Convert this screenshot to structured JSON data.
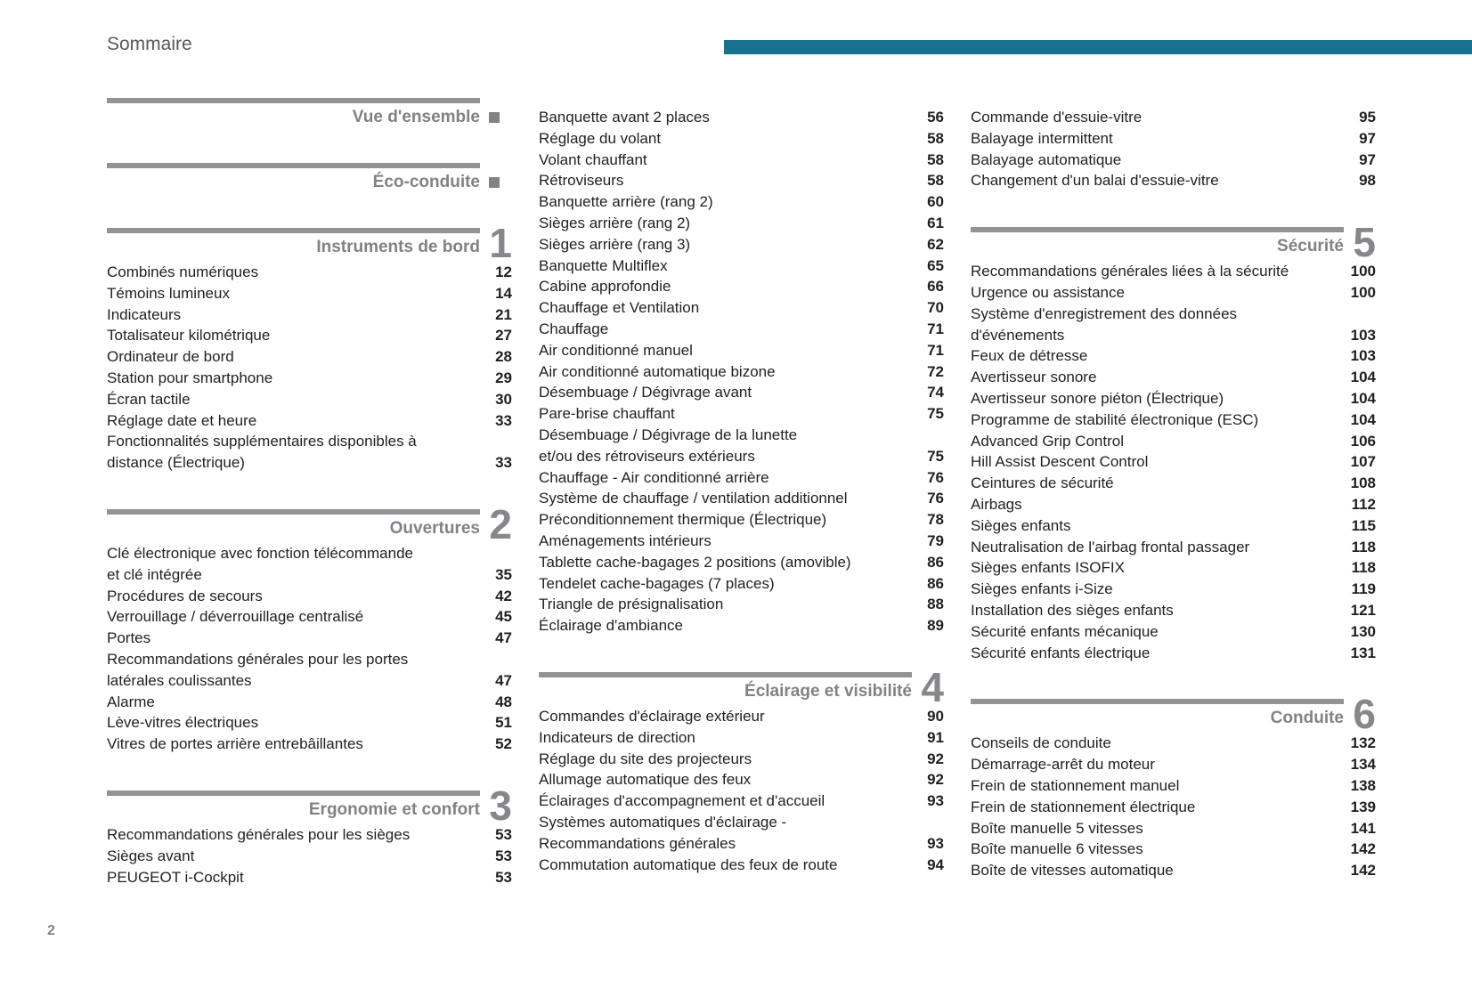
{
  "page": {
    "title": "Sommaire",
    "page_number": "2",
    "colors": {
      "accent_teal": "#17718F",
      "rule_gray": "#919396",
      "heading_gray": "#808285",
      "text_dark": "#231F20"
    }
  },
  "toc": {
    "columns": [
      {
        "sections": [
          {
            "title": "Vue d'ensemble",
            "marker": "square",
            "entries": []
          },
          {
            "title": "Éco-conduite",
            "marker": "square",
            "entries": []
          },
          {
            "title": "Instruments de bord",
            "number": "1",
            "entries": [
              {
                "lines": [
                  "Combinés numériques"
                ],
                "page": "12"
              },
              {
                "lines": [
                  "Témoins lumineux"
                ],
                "page": "14"
              },
              {
                "lines": [
                  "Indicateurs"
                ],
                "page": "21"
              },
              {
                "lines": [
                  "Totalisateur kilométrique"
                ],
                "page": "27"
              },
              {
                "lines": [
                  "Ordinateur de bord"
                ],
                "page": "28"
              },
              {
                "lines": [
                  "Station pour smartphone"
                ],
                "page": "29"
              },
              {
                "lines": [
                  "Écran tactile"
                ],
                "page": "30"
              },
              {
                "lines": [
                  "Réglage date et heure"
                ],
                "page": "33"
              },
              {
                "lines": [
                  "Fonctionnalités supplémentaires disponibles à",
                  "distance (Électrique)"
                ],
                "page": "33"
              }
            ]
          },
          {
            "title": "Ouvertures",
            "number": "2",
            "entries": [
              {
                "lines": [
                  "Clé électronique avec fonction télécommande",
                  "et clé intégrée"
                ],
                "page": "35"
              },
              {
                "lines": [
                  "Procédures de secours"
                ],
                "page": "42"
              },
              {
                "lines": [
                  "Verrouillage / déverrouillage centralisé"
                ],
                "page": "45"
              },
              {
                "lines": [
                  "Portes"
                ],
                "page": "47"
              },
              {
                "lines": [
                  "Recommandations générales pour les portes",
                  "latérales coulissantes"
                ],
                "page": "47"
              },
              {
                "lines": [
                  "Alarme"
                ],
                "page": "48"
              },
              {
                "lines": [
                  "Lève-vitres électriques"
                ],
                "page": "51"
              },
              {
                "lines": [
                  "Vitres de portes arrière entrebâillantes"
                ],
                "page": "52"
              }
            ]
          },
          {
            "title": "Ergonomie et confort",
            "number": "3",
            "entries": [
              {
                "lines": [
                  "Recommandations générales pour les sièges"
                ],
                "page": "53"
              },
              {
                "lines": [
                  "Sièges avant"
                ],
                "page": "53"
              },
              {
                "lines": [
                  "PEUGEOT i-Cockpit"
                ],
                "page": "53"
              }
            ]
          }
        ]
      },
      {
        "sections": [
          {
            "entries": [
              {
                "lines": [
                  "Banquette avant 2 places"
                ],
                "page": "56"
              },
              {
                "lines": [
                  "Réglage du volant"
                ],
                "page": "58"
              },
              {
                "lines": [
                  "Volant chauffant"
                ],
                "page": "58"
              },
              {
                "lines": [
                  "Rétroviseurs"
                ],
                "page": "58"
              },
              {
                "lines": [
                  "Banquette arrière (rang 2)"
                ],
                "page": "60"
              },
              {
                "lines": [
                  "Sièges arrière (rang 2)"
                ],
                "page": "61"
              },
              {
                "lines": [
                  "Sièges arrière (rang 3)"
                ],
                "page": "62"
              },
              {
                "lines": [
                  "Banquette Multiflex"
                ],
                "page": "65"
              },
              {
                "lines": [
                  "Cabine approfondie"
                ],
                "page": "66"
              },
              {
                "lines": [
                  "Chauffage et Ventilation"
                ],
                "page": "70"
              },
              {
                "lines": [
                  "Chauffage"
                ],
                "page": "71"
              },
              {
                "lines": [
                  "Air conditionné manuel"
                ],
                "page": "71"
              },
              {
                "lines": [
                  "Air conditionné automatique bizone"
                ],
                "page": "72"
              },
              {
                "lines": [
                  "Désembuage / Dégivrage avant"
                ],
                "page": "74"
              },
              {
                "lines": [
                  "Pare-brise chauffant"
                ],
                "page": "75"
              },
              {
                "lines": [
                  "Désembuage / Dégivrage de la lunette",
                  "et/ou des rétroviseurs extérieurs"
                ],
                "page": "75"
              },
              {
                "lines": [
                  "Chauffage - Air conditionné arrière"
                ],
                "page": "76"
              },
              {
                "lines": [
                  "Système de chauffage / ventilation additionnel"
                ],
                "page": "76"
              },
              {
                "lines": [
                  "Préconditionnement thermique (Électrique)"
                ],
                "page": "78"
              },
              {
                "lines": [
                  "Aménagements intérieurs"
                ],
                "page": "79"
              },
              {
                "lines": [
                  "Tablette cache-bagages 2 positions (amovible)"
                ],
                "page": "86"
              },
              {
                "lines": [
                  "Tendelet cache-bagages (7 places)"
                ],
                "page": "86"
              },
              {
                "lines": [
                  "Triangle de présignalisation"
                ],
                "page": "88"
              },
              {
                "lines": [
                  "Éclairage d'ambiance"
                ],
                "page": "89"
              }
            ]
          },
          {
            "title": "Éclairage et visibilité",
            "number": "4",
            "entries": [
              {
                "lines": [
                  "Commandes d'éclairage extérieur"
                ],
                "page": "90"
              },
              {
                "lines": [
                  "Indicateurs de direction"
                ],
                "page": "91"
              },
              {
                "lines": [
                  "Réglage du site des projecteurs"
                ],
                "page": "92"
              },
              {
                "lines": [
                  "Allumage automatique des feux"
                ],
                "page": "92"
              },
              {
                "lines": [
                  "Éclairages d'accompagnement et d'accueil"
                ],
                "page": "93"
              },
              {
                "lines": [
                  "Systèmes automatiques d'éclairage -",
                  "Recommandations générales"
                ],
                "page": "93"
              },
              {
                "lines": [
                  "Commutation automatique des feux de route"
                ],
                "page": "94"
              }
            ]
          }
        ]
      },
      {
        "sections": [
          {
            "entries": [
              {
                "lines": [
                  "Commande d'essuie-vitre"
                ],
                "page": "95"
              },
              {
                "lines": [
                  "Balayage intermittent"
                ],
                "page": "97"
              },
              {
                "lines": [
                  "Balayage automatique"
                ],
                "page": "97"
              },
              {
                "lines": [
                  "Changement d'un balai d'essuie-vitre"
                ],
                "page": "98"
              }
            ]
          },
          {
            "title": "Sécurité",
            "number": "5",
            "entries": [
              {
                "lines": [
                  "Recommandations générales liées à la sécurité"
                ],
                "page": "100"
              },
              {
                "lines": [
                  "Urgence ou assistance"
                ],
                "page": "100"
              },
              {
                "lines": [
                  "Système d'enregistrement des données",
                  "d'événements"
                ],
                "page": "103"
              },
              {
                "lines": [
                  "Feux de détresse"
                ],
                "page": "103"
              },
              {
                "lines": [
                  "Avertisseur sonore"
                ],
                "page": "104"
              },
              {
                "lines": [
                  "Avertisseur sonore piéton (Électrique)"
                ],
                "page": "104"
              },
              {
                "lines": [
                  "Programme de stabilité électronique (ESC)"
                ],
                "page": "104"
              },
              {
                "lines": [
                  "Advanced Grip Control"
                ],
                "page": "106"
              },
              {
                "lines": [
                  "Hill Assist Descent Control"
                ],
                "page": "107"
              },
              {
                "lines": [
                  "Ceintures de sécurité"
                ],
                "page": "108"
              },
              {
                "lines": [
                  "Airbags"
                ],
                "page": "112"
              },
              {
                "lines": [
                  "Sièges enfants"
                ],
                "page": "115"
              },
              {
                "lines": [
                  "Neutralisation de l'airbag frontal passager"
                ],
                "page": "118"
              },
              {
                "lines": [
                  "Sièges enfants ISOFIX"
                ],
                "page": "118"
              },
              {
                "lines": [
                  "Sièges enfants i-Size"
                ],
                "page": "119"
              },
              {
                "lines": [
                  "Installation des sièges enfants"
                ],
                "page": "121"
              },
              {
                "lines": [
                  "Sécurité enfants mécanique"
                ],
                "page": "130"
              },
              {
                "lines": [
                  "Sécurité enfants électrique"
                ],
                "page": "131"
              }
            ]
          },
          {
            "title": "Conduite",
            "number": "6",
            "entries": [
              {
                "lines": [
                  "Conseils de conduite"
                ],
                "page": "132"
              },
              {
                "lines": [
                  "Démarrage-arrêt du moteur"
                ],
                "page": "134"
              },
              {
                "lines": [
                  "Frein de stationnement manuel"
                ],
                "page": "138"
              },
              {
                "lines": [
                  "Frein de stationnement électrique"
                ],
                "page": "139"
              },
              {
                "lines": [
                  "Boîte manuelle 5 vitesses"
                ],
                "page": "141"
              },
              {
                "lines": [
                  "Boîte manuelle 6 vitesses"
                ],
                "page": "142"
              },
              {
                "lines": [
                  "Boîte de vitesses automatique"
                ],
                "page": "142"
              }
            ]
          }
        ]
      }
    ]
  }
}
